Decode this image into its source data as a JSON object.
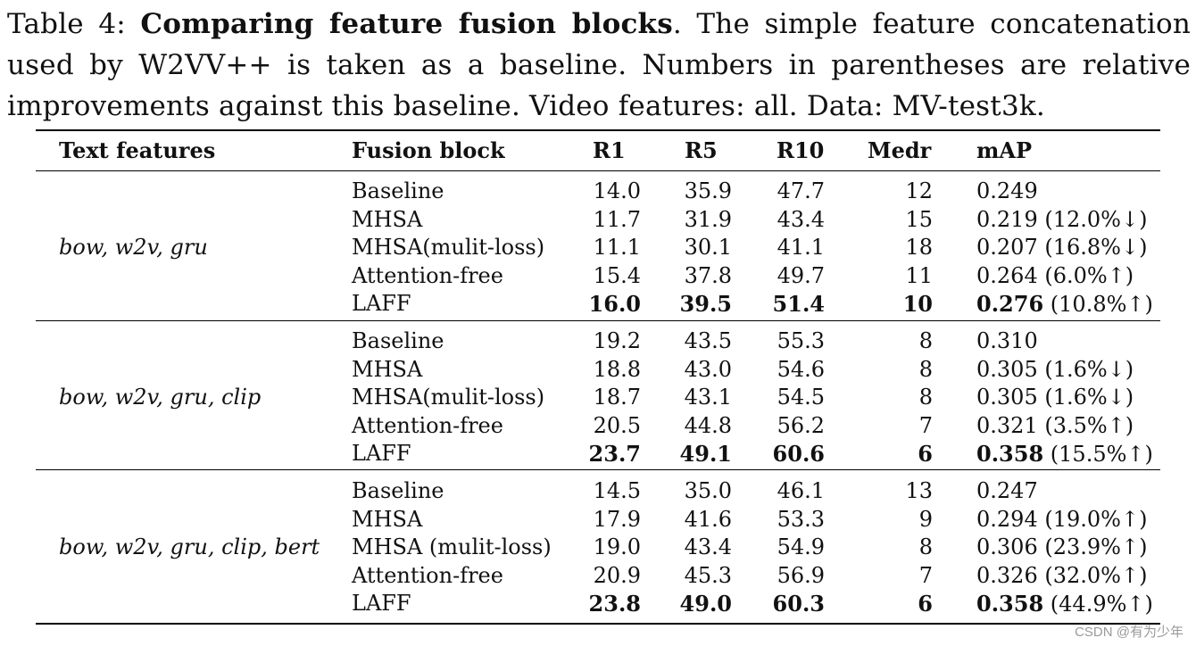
{
  "caption": {
    "label": "Table 4:",
    "bold": "Comparing feature fusion blocks",
    "text": ". The simple feature concatenation used by W2VV++ is taken as a baseline. Numbers in parentheses are relative improvements against this baseline. Video features: all. Data: MV-test3k."
  },
  "columns": [
    "Text features",
    "Fusion block",
    "R1",
    "R5",
    "R10",
    "Medr",
    "mAP"
  ],
  "groups": [
    {
      "text_features": "bow, w2v, gru",
      "rows": [
        {
          "fusion": "Baseline",
          "r1": "14.0",
          "r5": "35.9",
          "r10": "47.7",
          "medr": "12",
          "map": "0.249",
          "rel": ""
        },
        {
          "fusion": "MHSA",
          "r1": "11.7",
          "r5": "31.9",
          "r10": "43.4",
          "medr": "15",
          "map": "0.219",
          "rel": " (12.0%↓)"
        },
        {
          "fusion": "MHSA(mulit-loss)",
          "r1": "11.1",
          "r5": "30.1",
          "r10": "41.1",
          "medr": "18",
          "map": "0.207",
          "rel": " (16.8%↓)"
        },
        {
          "fusion": "Attention-free",
          "r1": "15.4",
          "r5": "37.8",
          "r10": "49.7",
          "medr": "11",
          "map": "0.264",
          "rel": " (6.0%↑)"
        },
        {
          "fusion": "LAFF",
          "r1": "16.0",
          "r5": "39.5",
          "r10": "51.4",
          "medr": "10",
          "map": "0.276",
          "rel": " (10.8%↑)"
        }
      ]
    },
    {
      "text_features": "bow, w2v, gru, clip",
      "rows": [
        {
          "fusion": "Baseline",
          "r1": "19.2",
          "r5": "43.5",
          "r10": "55.3",
          "medr": "8",
          "map": "0.310",
          "rel": ""
        },
        {
          "fusion": "MHSA",
          "r1": "18.8",
          "r5": "43.0",
          "r10": "54.6",
          "medr": "8",
          "map": "0.305",
          "rel": " (1.6%↓)"
        },
        {
          "fusion": "MHSA(mulit-loss)",
          "r1": "18.7",
          "r5": "43.1",
          "r10": "54.5",
          "medr": "8",
          "map": "0.305",
          "rel": " (1.6%↓)"
        },
        {
          "fusion": "Attention-free",
          "r1": "20.5",
          "r5": "44.8",
          "r10": "56.2",
          "medr": "7",
          "map": "0.321",
          "rel": " (3.5%↑)"
        },
        {
          "fusion": "LAFF",
          "r1": "23.7",
          "r5": "49.1",
          "r10": "60.6",
          "medr": "6",
          "map": "0.358",
          "rel": " (15.5%↑)"
        }
      ]
    },
    {
      "text_features": "bow, w2v, gru, clip, bert",
      "rows": [
        {
          "fusion": "Baseline",
          "r1": "14.5",
          "r5": "35.0",
          "r10": "46.1",
          "medr": "13",
          "map": "0.247",
          "rel": ""
        },
        {
          "fusion": "MHSA",
          "r1": "17.9",
          "r5": "41.6",
          "r10": "53.3",
          "medr": "9",
          "map": "0.294",
          "rel": " (19.0%↑)"
        },
        {
          "fusion": "MHSA (mulit-loss)",
          "r1": "19.0",
          "r5": "43.4",
          "r10": "54.9",
          "medr": "8",
          "map": "0.306",
          "rel": " (23.9%↑)"
        },
        {
          "fusion": "Attention-free",
          "r1": "20.9",
          "r5": "45.3",
          "r10": "56.9",
          "medr": "7",
          "map": "0.326",
          "rel": " (32.0%↑)"
        },
        {
          "fusion": "LAFF",
          "r1": "23.8",
          "r5": "49.0",
          "r10": "60.3",
          "medr": "6",
          "map": "0.358",
          "rel": " (44.9%↑)"
        }
      ]
    }
  ],
  "watermark": "CSDN @有为少年"
}
